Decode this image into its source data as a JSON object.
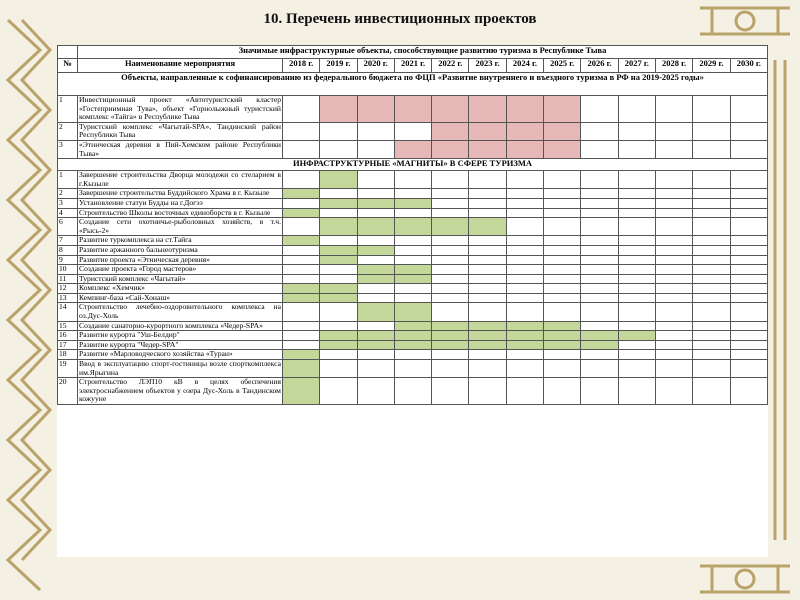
{
  "title": "10. Перечень инвестиционных проектов",
  "table": {
    "caption": "Значимые инфраструктурные объекты, способствующие развитию туризма в Республике Тыва",
    "header": [
      "№",
      "Наименование мероприятия",
      "2018 г.",
      "2019 г.",
      "2020 г.",
      "2021 г.",
      "2022 г.",
      "2023 г.",
      "2024 г.",
      "2025 г.",
      "2026 г.",
      "2027 г.",
      "2028 г.",
      "2029 г.",
      "2030 г."
    ],
    "sections": [
      {
        "title": "Объекты, направленные к софинансированию из федерального бюджета по ФЦП «Развитие внутреннего и въездного туризма в РФ на 2019-2025 годы»",
        "color": "#e6b8b7",
        "rows": [
          {
            "number": "1",
            "name": "Инвестиционный проект «Автотуристский кластер «Гостеприимная Тува», объект «Горнолыжный туристский комплекс «Тайга» в Республике Тыва",
            "shaded": [
              0,
              1,
              1,
              1,
              1,
              1,
              1,
              1,
              0,
              0,
              0,
              0,
              0
            ]
          },
          {
            "number": "2",
            "name": "Туристский комплекс «Чагытай-SPA», Тандинский район Республики Тыва",
            "shaded": [
              0,
              0,
              0,
              0,
              1,
              1,
              1,
              1,
              0,
              0,
              0,
              0,
              0
            ]
          },
          {
            "number": "3",
            "name": "«Этническая деревня в Пий-Хемском районе Республики Тыва»",
            "shaded": [
              0,
              0,
              0,
              1,
              1,
              1,
              1,
              1,
              0,
              0,
              0,
              0,
              0
            ]
          }
        ]
      },
      {
        "title": "ИНФРАСТРУКТУРНЫЕ «МАГНИТЫ» В СФЕРЕ ТУРИЗМА",
        "color": "#c4d79b",
        "rows": [
          {
            "number": "1",
            "name": "Завершение строительства Дворца молодежи со стеларием в г.Кызыле",
            "shaded": [
              0,
              1,
              0,
              0,
              0,
              0,
              0,
              0,
              0,
              0,
              0,
              0,
              0
            ]
          },
          {
            "number": "2",
            "name": "Завершение строительства Буддийского Храма в г. Кызыле",
            "shaded": [
              1,
              0,
              0,
              0,
              0,
              0,
              0,
              0,
              0,
              0,
              0,
              0,
              0
            ]
          },
          {
            "number": "3",
            "name": "Установление статуи Будды на г.Догээ",
            "shaded": [
              0,
              1,
              1,
              1,
              0,
              0,
              0,
              0,
              0,
              0,
              0,
              0,
              0
            ]
          },
          {
            "number": "4",
            "name": "Строительство Школы восточных единоборств в г. Кызыле",
            "shaded": [
              1,
              0,
              0,
              0,
              0,
              0,
              0,
              0,
              0,
              0,
              0,
              0,
              0
            ]
          },
          {
            "number": "6",
            "name": "Создание сети охотничье-рыболовных хозяйств, в т.ч. «Рысь-2»",
            "shaded": [
              0,
              1,
              1,
              1,
              1,
              1,
              0,
              0,
              0,
              0,
              0,
              0,
              0
            ]
          },
          {
            "number": "7",
            "name": "Развитие туркомплекса на ст.Тайга",
            "shaded": [
              1,
              0,
              0,
              0,
              0,
              0,
              0,
              0,
              0,
              0,
              0,
              0,
              0
            ]
          },
          {
            "number": "8",
            "name": "Развитие аржанного бальнеотуризма",
            "shaded": [
              0,
              1,
              1,
              0,
              0,
              0,
              0,
              0,
              0,
              0,
              0,
              0,
              0
            ]
          },
          {
            "number": "9",
            "name": "Развитие проекта «Этническая деревня»",
            "shaded": [
              0,
              1,
              0,
              0,
              0,
              0,
              0,
              0,
              0,
              0,
              0,
              0,
              0
            ]
          },
          {
            "number": "10",
            "name": "Создание проекта «Город мастеров»",
            "shaded": [
              0,
              0,
              1,
              1,
              0,
              0,
              0,
              0,
              0,
              0,
              0,
              0,
              0
            ]
          },
          {
            "number": "11",
            "name": "Туристский комплекс «Чагытай»",
            "shaded": [
              0,
              0,
              1,
              1,
              0,
              0,
              0,
              0,
              0,
              0,
              0,
              0,
              0
            ]
          },
          {
            "number": "12",
            "name": "Комплекс «Хемчик»",
            "shaded": [
              1,
              1,
              0,
              0,
              0,
              0,
              0,
              0,
              0,
              0,
              0,
              0,
              0
            ]
          },
          {
            "number": "13",
            "name": "Кемпинг-база «Сай-Хонаш»",
            "shaded": [
              1,
              1,
              0,
              0,
              0,
              0,
              0,
              0,
              0,
              0,
              0,
              0,
              0
            ]
          },
          {
            "number": "14",
            "name": "Строительство лечебно-оздоровительного комплекса на оз.Дус-Холь",
            "shaded": [
              0,
              0,
              1,
              1,
              0,
              0,
              0,
              0,
              0,
              0,
              0,
              0,
              0
            ]
          },
          {
            "number": "15",
            "name": "Создание санаторно-курортного комплекса «Чедер-SPA»",
            "shaded": [
              0,
              0,
              0,
              1,
              1,
              1,
              1,
              1,
              0,
              0,
              0,
              0,
              0
            ]
          },
          {
            "number": "16",
            "name": "Развитие курорта \"Уш-Белдир\"",
            "shaded": [
              0,
              1,
              1,
              1,
              1,
              1,
              1,
              1,
              1,
              1,
              0,
              0,
              0
            ]
          },
          {
            "number": "17",
            "name": "Развитие курорта \"Чедер-SPA\"",
            "shaded": [
              0,
              1,
              1,
              1,
              1,
              1,
              1,
              1,
              1,
              0,
              0,
              0,
              0
            ]
          },
          {
            "number": "18",
            "name": "Развитие «Марловодческого хозяйства «Туран»",
            "shaded": [
              1,
              0,
              0,
              0,
              0,
              0,
              0,
              0,
              0,
              0,
              0,
              0,
              0
            ]
          },
          {
            "number": "19",
            "name": "Ввод в эксплуатацию спорт-гостиницы возле спорткомплекса им.Ярыгина",
            "shaded": [
              1,
              0,
              0,
              0,
              0,
              0,
              0,
              0,
              0,
              0,
              0,
              0,
              0
            ]
          },
          {
            "number": "20",
            "name": "Строительство ЛЭП10 кВ в целях обеспечения электроснабжением объектов у озера Дус-Холь в Тандинском кожууне",
            "shaded": [
              1,
              0,
              0,
              0,
              0,
              0,
              0,
              0,
              0,
              0,
              0,
              0,
              0
            ]
          }
        ]
      }
    ]
  }
}
